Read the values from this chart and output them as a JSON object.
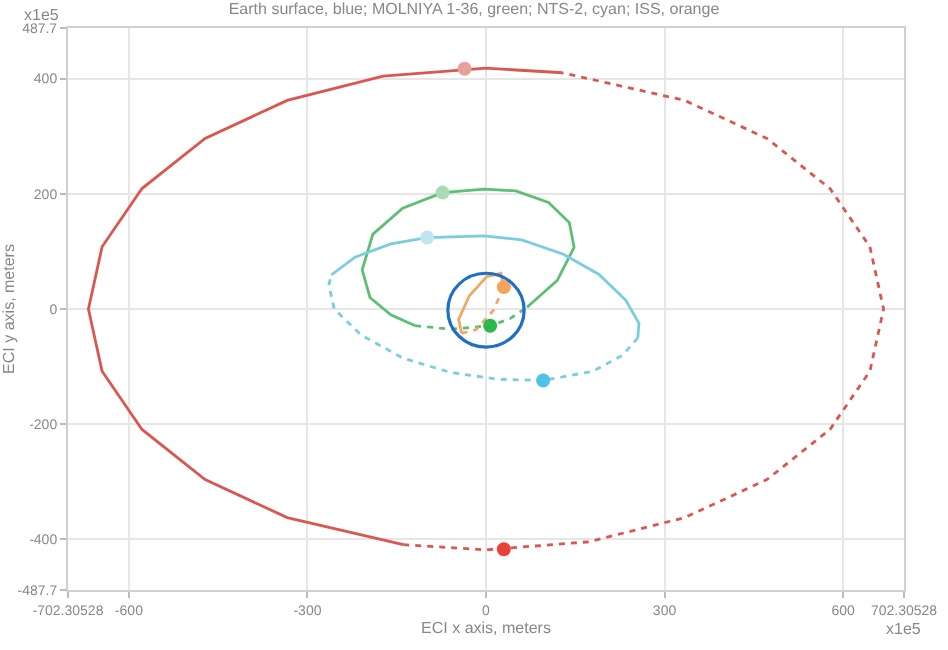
{
  "chart_data": {
    "type": "line",
    "title": "Earth surface, blue; MOLNIYA 1-36, green; NTS-2, cyan; ISS, orange",
    "xlabel": "ECI x axis, meters",
    "ylabel": "ECI y axis, meters",
    "annotations": [
      "x1e5",
      "x1e5"
    ],
    "xlim": [
      -702.30528,
      702.30528
    ],
    "xticks": [
      -702.30528,
      -600,
      -300,
      0,
      300,
      600,
      702.30528
    ],
    "ylim": [
      -487.7,
      487.7
    ],
    "yticks": [
      -487.7,
      -400,
      -200,
      0,
      200,
      400,
      487.7
    ],
    "grid": true,
    "series": [
      {
        "line_style": "solid",
        "color": "#d9574e",
        "x": [
          128,
          0,
          -173,
          -334,
          -472,
          -578,
          -645,
          -668,
          -645,
          -578,
          -472,
          -334,
          -139
        ],
        "values": [
          410,
          418,
          404,
          362,
          296,
          209,
          108,
          0,
          -108,
          -209,
          -296,
          -362,
          -409
        ]
      },
      {
        "line_style": "dotted",
        "color": "#d9574e",
        "x": [
          -139,
          0,
          173,
          334,
          472,
          578,
          645,
          668,
          645,
          578,
          472,
          334,
          128
        ],
        "values": [
          -409,
          -418,
          -404,
          -362,
          -296,
          -209,
          -108,
          0,
          108,
          209,
          296,
          362,
          410
        ]
      },
      {
        "line_style": "solid",
        "color": "#5cbf73",
        "x": [
          69,
          120,
          148,
          140,
          105,
          50,
          -3,
          -73,
          -140,
          -190,
          -208,
          -195,
          -160,
          -119
        ],
        "values": [
          3,
          50,
          107,
          150,
          185,
          205,
          208,
          202,
          175,
          130,
          68,
          20,
          -10,
          -29
        ]
      },
      {
        "line_style": "dotted",
        "color": "#5cbf73",
        "x": [
          -119,
          -60,
          7,
          40,
          69
        ],
        "values": [
          -29,
          -35,
          -29,
          -17,
          3
        ]
      },
      {
        "line_style": "solid",
        "color": "#79cde0",
        "x": [
          -260,
          -220,
          -160,
          -99,
          -3,
          60,
          130,
          190,
          235,
          257,
          255
        ],
        "values": [
          59,
          90,
          113,
          124,
          127,
          120,
          95,
          60,
          15,
          -25,
          -50
        ]
      },
      {
        "line_style": "dotted",
        "color": "#79cde0",
        "x": [
          255,
          230,
          180,
          96,
          20,
          -60,
          -140,
          -210,
          -255,
          -264,
          -260
        ],
        "values": [
          -50,
          -80,
          -108,
          -124,
          -122,
          -110,
          -85,
          -45,
          0,
          42,
          59
        ]
      },
      {
        "line_style": "solid",
        "color": "#f0a866",
        "x": [
          30,
          25,
          1,
          -28,
          -46,
          -41
        ],
        "values": [
          38,
          62,
          56,
          23,
          -18,
          -42
        ]
      },
      {
        "line_style": "dotted",
        "color": "#f0a866",
        "x": [
          -41,
          -17,
          12,
          30
        ],
        "values": [
          -42,
          -36,
          -3,
          38
        ]
      },
      {
        "type": "scatter",
        "marker": "circle",
        "color": "#e8a09a",
        "x": [
          -36
        ],
        "values": [
          417
        ]
      },
      {
        "type": "scatter",
        "marker": "circle",
        "color": "#a8dcb5",
        "x": [
          -73
        ],
        "values": [
          202
        ]
      },
      {
        "type": "scatter",
        "marker": "circle",
        "color": "#bfe6ef",
        "x": [
          -99
        ],
        "values": [
          124
        ]
      },
      {
        "type": "scatter",
        "marker": "circle",
        "color": "#e8403a",
        "x": [
          30
        ],
        "values": [
          -417
        ]
      },
      {
        "type": "scatter",
        "marker": "circle",
        "color": "#2db84d",
        "x": [
          7
        ],
        "values": [
          -29
        ]
      },
      {
        "type": "scatter",
        "marker": "circle",
        "color": "#4ec3ea",
        "x": [
          96
        ],
        "values": [
          -124
        ]
      },
      {
        "type": "scatter",
        "marker": "circle",
        "color": "#f5a25a",
        "x": [
          30
        ],
        "values": [
          38
        ]
      }
    ]
  }
}
